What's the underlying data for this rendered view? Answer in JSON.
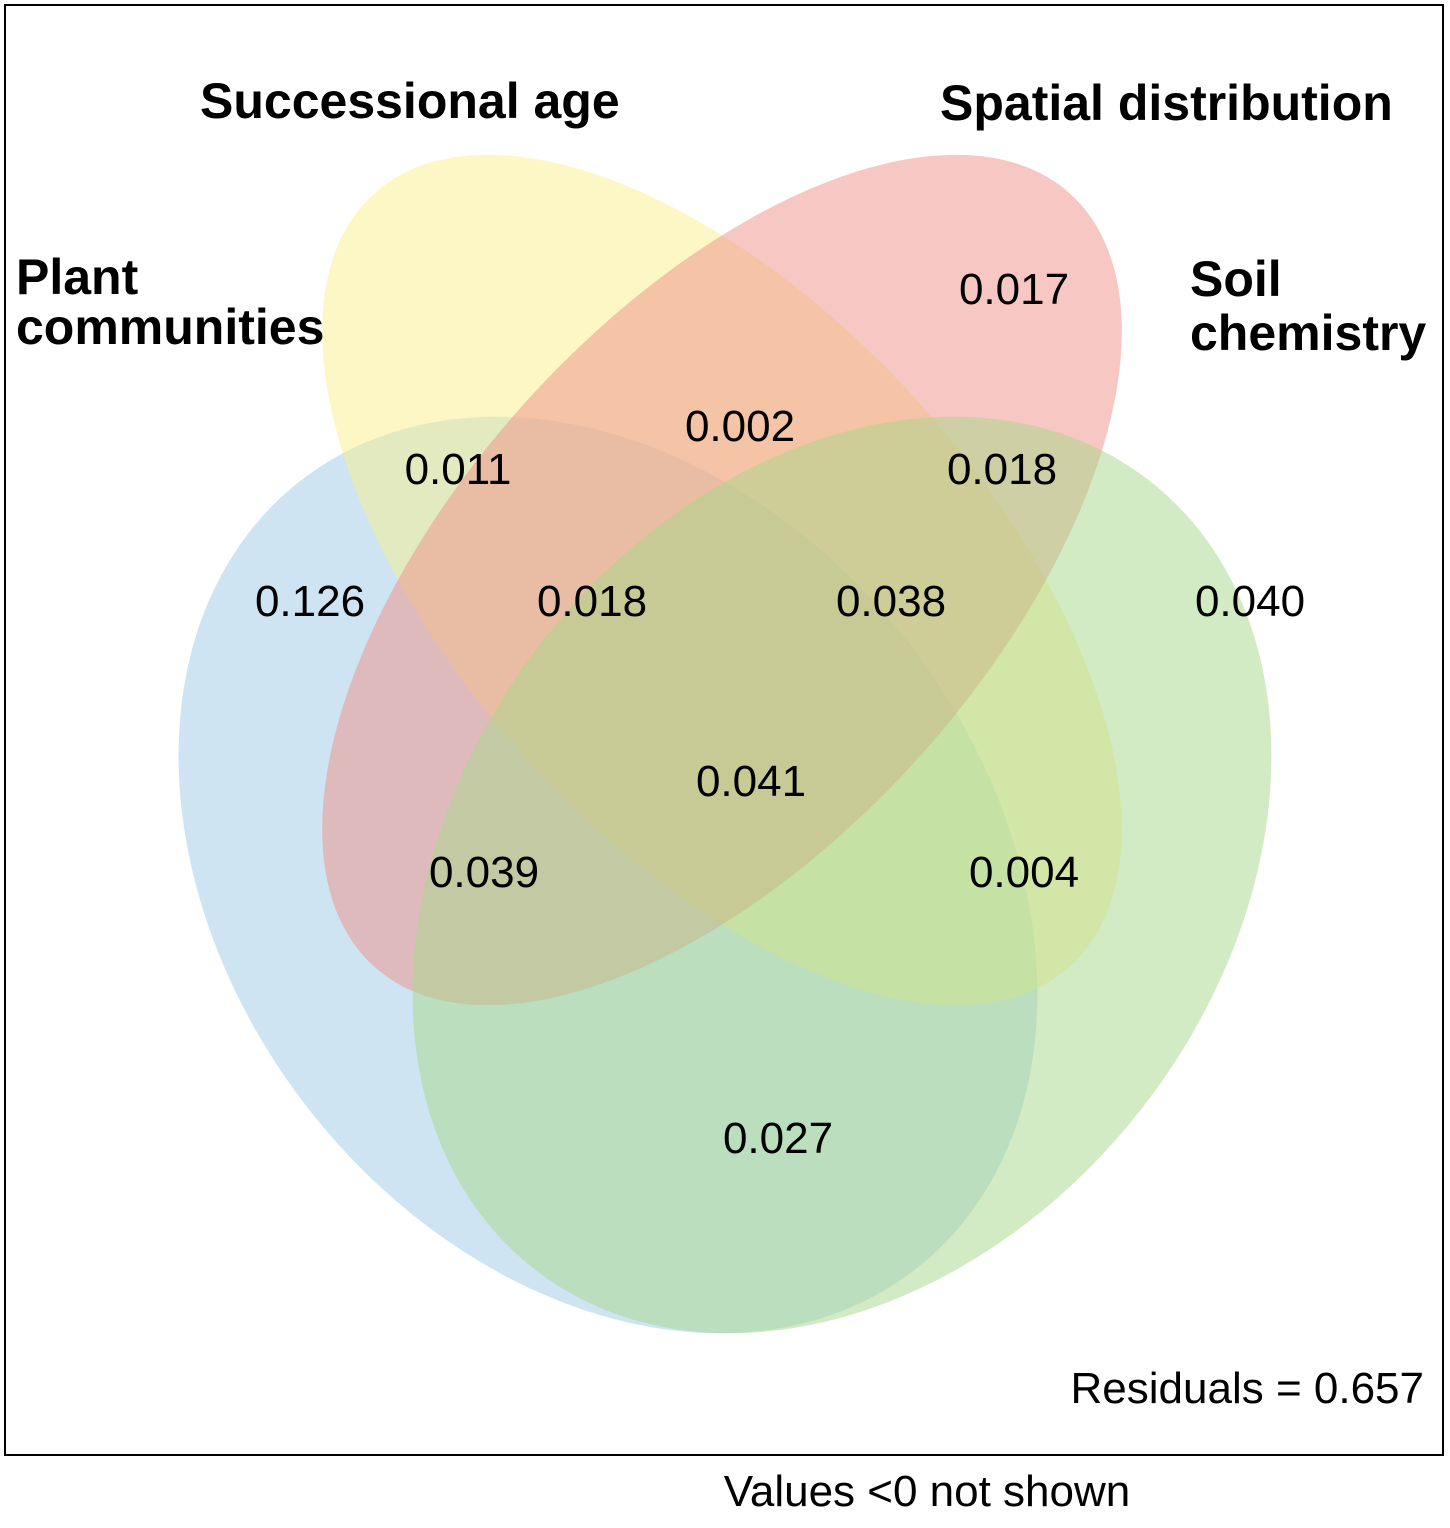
{
  "sets": [
    {
      "key": "plant",
      "title_lines": [
        "Plant",
        "communities"
      ],
      "color": "#9ECAE8"
    },
    {
      "key": "age",
      "title_lines": [
        "Successional age"
      ],
      "color": "#F9F08C"
    },
    {
      "key": "spatial",
      "title_lines": [
        "Spatial distribution"
      ],
      "color": "#EE8F88"
    },
    {
      "key": "soil",
      "title_lines": [
        "Soil",
        "chemistry"
      ],
      "color": "#A7D78A"
    }
  ],
  "regions": [
    {
      "sets": [
        "plant"
      ],
      "label": "0.126"
    },
    {
      "sets": [
        "spatial"
      ],
      "label": "0.017"
    },
    {
      "sets": [
        "soil"
      ],
      "label": "0.040"
    },
    {
      "sets": [
        "plant",
        "age"
      ],
      "label": "0.011"
    },
    {
      "sets": [
        "age",
        "spatial"
      ],
      "label": "0.002"
    },
    {
      "sets": [
        "spatial",
        "soil"
      ],
      "label": "0.018"
    },
    {
      "sets": [
        "plant",
        "age",
        "spatial"
      ],
      "label": "0.018"
    },
    {
      "sets": [
        "age",
        "spatial",
        "soil"
      ],
      "label": "0.038"
    },
    {
      "sets": [
        "plant",
        "age",
        "spatial",
        "soil"
      ],
      "label": "0.041"
    },
    {
      "sets": [
        "plant",
        "spatial"
      ],
      "label": "0.039"
    },
    {
      "sets": [
        "age",
        "soil"
      ],
      "label": "0.004"
    },
    {
      "sets": [
        "plant",
        "soil"
      ],
      "label": "0.027"
    }
  ],
  "residuals_text": "Residuals = 0.657",
  "footnote": "Values <0 not shown"
}
